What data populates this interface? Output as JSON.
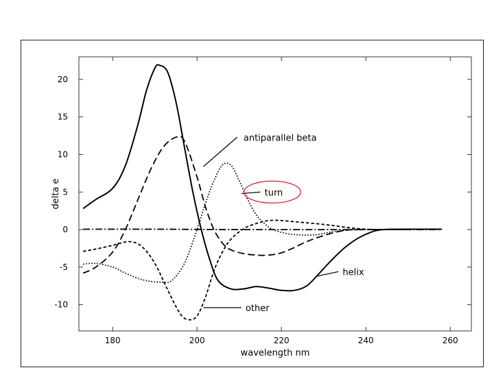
{
  "chart_data": {
    "type": "line",
    "title": "",
    "xlabel": "wavelength nm",
    "ylabel": "delta e",
    "xlim": [
      172,
      265
    ],
    "ylim": [
      -13.5,
      23
    ],
    "x_ticks": [
      180,
      200,
      220,
      240,
      260
    ],
    "y_ticks": [
      20,
      15,
      10,
      5,
      0,
      -5,
      -10
    ],
    "grid": false,
    "series": [
      {
        "name": "helix",
        "dash": "solid",
        "points": [
          [
            173,
            2.8
          ],
          [
            176,
            4.0
          ],
          [
            180,
            5.5
          ],
          [
            183,
            8.5
          ],
          [
            186,
            14
          ],
          [
            188,
            18.5
          ],
          [
            190,
            21.5
          ],
          [
            191,
            21.9
          ],
          [
            193,
            21
          ],
          [
            195,
            17
          ],
          [
            197,
            11
          ],
          [
            199,
            5
          ],
          [
            201,
            0
          ],
          [
            203,
            -4
          ],
          [
            205,
            -6.8
          ],
          [
            208,
            -7.9
          ],
          [
            211,
            -7.9
          ],
          [
            214,
            -7.6
          ],
          [
            217,
            -7.8
          ],
          [
            220,
            -8.1
          ],
          [
            223,
            -8.1
          ],
          [
            226,
            -7.5
          ],
          [
            229,
            -5.8
          ],
          [
            232,
            -4
          ],
          [
            235,
            -2.4
          ],
          [
            238,
            -1.2
          ],
          [
            241,
            -0.4
          ],
          [
            244,
            0
          ],
          [
            250,
            0.05
          ],
          [
            258,
            0.05
          ]
        ]
      },
      {
        "name": "antiparallel beta",
        "dash": "10,5",
        "points": [
          [
            173,
            -5.8
          ],
          [
            176,
            -5
          ],
          [
            180,
            -3
          ],
          [
            183,
            0
          ],
          [
            186,
            4
          ],
          [
            189,
            8
          ],
          [
            192,
            11
          ],
          [
            195,
            12.3
          ],
          [
            197,
            11.8
          ],
          [
            200,
            7
          ],
          [
            202,
            3
          ],
          [
            204,
            0
          ],
          [
            206,
            -1.8
          ],
          [
            208,
            -2.7
          ],
          [
            211,
            -3.2
          ],
          [
            214,
            -3.4
          ],
          [
            217,
            -3.4
          ],
          [
            220,
            -3.1
          ],
          [
            223,
            -2.4
          ],
          [
            226,
            -1.6
          ],
          [
            230,
            -0.8
          ],
          [
            235,
            -0.1
          ],
          [
            240,
            0
          ],
          [
            250,
            0
          ]
        ]
      },
      {
        "name": "turn",
        "dash": "1.6,2.4",
        "points": [
          [
            173,
            -4.6
          ],
          [
            176,
            -4.5
          ],
          [
            180,
            -5
          ],
          [
            183,
            -5.8
          ],
          [
            186,
            -6.5
          ],
          [
            189,
            -6.9
          ],
          [
            192,
            -7
          ],
          [
            194,
            -6.8
          ],
          [
            197,
            -4.5
          ],
          [
            200,
            0
          ],
          [
            202,
            3.5
          ],
          [
            204,
            6.5
          ],
          [
            206,
            8.6
          ],
          [
            208,
            8.6
          ],
          [
            210,
            6.5
          ],
          [
            212,
            4
          ],
          [
            214,
            2
          ],
          [
            216,
            0.8
          ],
          [
            218,
            0
          ],
          [
            221,
            -0.5
          ],
          [
            224,
            -0.7
          ],
          [
            228,
            -0.7
          ],
          [
            232,
            -0.3
          ],
          [
            236,
            -0.05
          ],
          [
            242,
            0
          ],
          [
            250,
            0
          ]
        ]
      },
      {
        "name": "other",
        "dash": "4.5,3",
        "points": [
          [
            173,
            -2.9
          ],
          [
            176,
            -2.6
          ],
          [
            180,
            -2.1
          ],
          [
            184,
            -1.6
          ],
          [
            187,
            -2.3
          ],
          [
            190,
            -4.5
          ],
          [
            193,
            -8
          ],
          [
            196,
            -11.2
          ],
          [
            198,
            -12
          ],
          [
            200,
            -11.5
          ],
          [
            202,
            -9
          ],
          [
            204,
            -5.5
          ],
          [
            206,
            -3
          ],
          [
            208,
            -1.3
          ],
          [
            211,
            0.1
          ],
          [
            214,
            0.8
          ],
          [
            217,
            1.2
          ],
          [
            220,
            1.2
          ],
          [
            224,
            1.0
          ],
          [
            228,
            0.8
          ],
          [
            232,
            0.55
          ],
          [
            236,
            0.25
          ],
          [
            240,
            0.05
          ],
          [
            245,
            0
          ],
          [
            250,
            0
          ]
        ]
      },
      {
        "name": "",
        "dash": "10,3,2,3",
        "points": [
          [
            173,
            0.05
          ],
          [
            190,
            0.05
          ],
          [
            210,
            0
          ],
          [
            240,
            0
          ],
          [
            258,
            0
          ]
        ]
      }
    ],
    "annotations": [
      {
        "text": "antiparallel beta",
        "label_xy": [
          211,
          12.3
        ],
        "leader_from": [
          209.5,
          12.3
        ],
        "leader_to": [
          201.5,
          8.4
        ],
        "circled": false
      },
      {
        "text": "turn",
        "label_xy": [
          216,
          5.0
        ],
        "leader_from": [
          215,
          5.0
        ],
        "leader_to": [
          210.5,
          4.8
        ],
        "circled": true,
        "circle_color": "#cc2222"
      },
      {
        "text": "helix",
        "label_xy": [
          234.5,
          -5.6
        ],
        "leader_from": [
          233.5,
          -5.6
        ],
        "leader_to": [
          228.5,
          -6.2
        ],
        "circled": false
      },
      {
        "text": "other",
        "label_xy": [
          211.5,
          -10.4
        ],
        "leader_from": [
          210.5,
          -10.4
        ],
        "leader_to": [
          201.5,
          -10.4
        ],
        "circled": false
      }
    ]
  }
}
